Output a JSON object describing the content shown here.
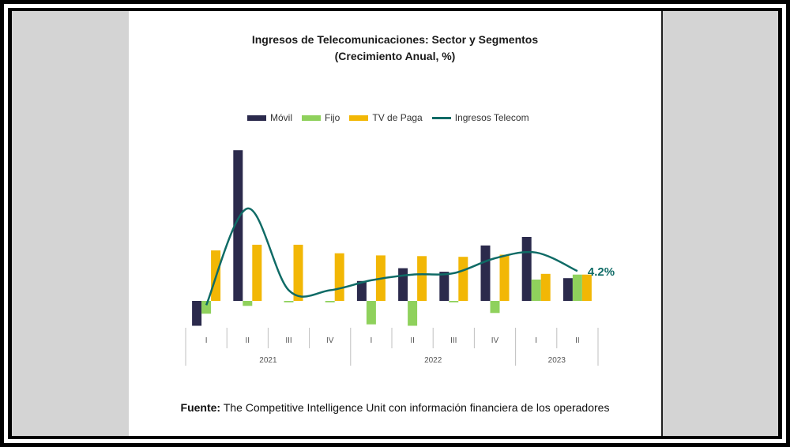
{
  "colors": {
    "movil": "#2b2a4c",
    "fijo": "#8fd15c",
    "tv": "#f2b705",
    "telecom": "#0f6b66",
    "axis": "#bfbfbf"
  },
  "chart_data": {
    "type": "bar",
    "title": "Ingresos de Telecomunicaciones: Sector y Segmentos",
    "subtitle": "(Crecimiento Anual, %)",
    "categories": [
      "I",
      "II",
      "III",
      "IV",
      "I",
      "II",
      "III",
      "IV",
      "I",
      "II"
    ],
    "years": [
      {
        "label": "2021",
        "quarters": 4
      },
      {
        "label": "2022",
        "quarters": 4
      },
      {
        "label": "2023",
        "quarters": 2
      }
    ],
    "series": [
      {
        "name": "Móvil",
        "type": "bar",
        "values": [
          -3.5,
          21.2,
          0,
          0,
          2.8,
          4.6,
          4.1,
          7.8,
          9.0,
          3.2
        ]
      },
      {
        "name": "Fijo",
        "type": "bar",
        "values": [
          -1.8,
          -0.7,
          -0.2,
          -0.2,
          -3.3,
          -3.5,
          -0.2,
          -1.7,
          3.0,
          3.7
        ]
      },
      {
        "name": "TV de Paga",
        "type": "bar",
        "values": [
          7.1,
          7.9,
          7.9,
          6.7,
          6.4,
          6.3,
          6.2,
          6.5,
          3.8,
          3.7
        ]
      },
      {
        "name": "Ingresos Telecom",
        "type": "line",
        "values": [
          -0.6,
          13.0,
          1.5,
          1.5,
          2.9,
          3.7,
          3.9,
          6.0,
          6.8,
          4.2
        ]
      }
    ],
    "annotation": "4.2%",
    "ylim": [
      -5,
      23
    ],
    "legend_position": "top"
  },
  "source": {
    "label": "Fuente:",
    "text": "The Competitive Intelligence Unit con información financiera de los operadores"
  }
}
